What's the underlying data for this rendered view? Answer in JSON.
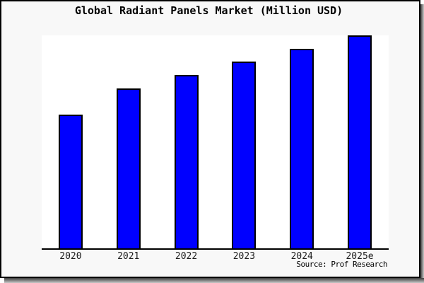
{
  "window": {
    "frame_background": "#f8f8f8",
    "frame_border_color": "#000000",
    "plot_background": "#ffffff"
  },
  "chart_data": {
    "type": "bar",
    "title": "Global Radiant Panels Market (Million USD)",
    "categories": [
      "2020",
      "2021",
      "2022",
      "2023",
      "2024",
      "2025e"
    ],
    "values": [
      62.8,
      75.1,
      81.4,
      87.7,
      93.7,
      100
    ],
    "values_note": "y-axis shows no tick labels; values estimated as percent of the tallest (2025e) bar",
    "xlabel": "",
    "ylabel": "",
    "ylim": [
      0,
      100
    ],
    "y_axis_ticks": [],
    "grid": false,
    "legend": null,
    "bar_color": "#0000ff",
    "bar_border_color": "#000000",
    "source": "Source: Prof Research"
  }
}
